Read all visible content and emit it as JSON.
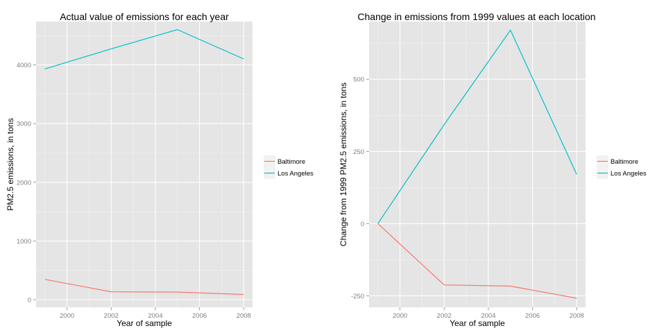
{
  "chart_data": [
    {
      "type": "line",
      "title": "Actual value of emissions for each year",
      "xlabel": "Year of sample",
      "ylabel": "PM2.5 emissions, in tons",
      "xlim": [
        1998.6,
        2008.4
      ],
      "ylim": [
        -130,
        4740
      ],
      "x_ticks": [
        2000,
        2002,
        2004,
        2006,
        2008
      ],
      "y_ticks": [
        0,
        1000,
        2000,
        3000,
        4000
      ],
      "x": [
        1999,
        2002,
        2005,
        2008
      ],
      "series": [
        {
          "name": "Baltimore",
          "color": "#f8766d",
          "values": [
            346.82,
            134.31,
            130.43,
            88.28
          ]
        },
        {
          "name": "Los Angeles",
          "color": "#00bfc4",
          "values": [
            3931.12,
            4274.03,
            4601.41,
            4101.32
          ]
        }
      ],
      "grid": true,
      "legend_position": "right"
    },
    {
      "type": "line",
      "title": "Change in emissions from 1999 values at each location",
      "xlabel": "Year of sample",
      "ylabel": "Change from 1999 PM2.5 emissions, in tons",
      "xlim": [
        1998.6,
        2008.4
      ],
      "ylim": [
        -290,
        700
      ],
      "x_ticks": [
        2000,
        2002,
        2004,
        2006,
        2008
      ],
      "y_ticks": [
        -250,
        0,
        250,
        500
      ],
      "x": [
        1999,
        2002,
        2005,
        2008
      ],
      "series": [
        {
          "name": "Baltimore",
          "color": "#f8766d",
          "values": [
            0,
            -212.5,
            -216.4,
            -258.5
          ]
        },
        {
          "name": "Los Angeles",
          "color": "#00bfc4",
          "values": [
            0,
            342.9,
            670.3,
            170.2
          ]
        }
      ],
      "grid": true,
      "legend_position": "right"
    }
  ]
}
